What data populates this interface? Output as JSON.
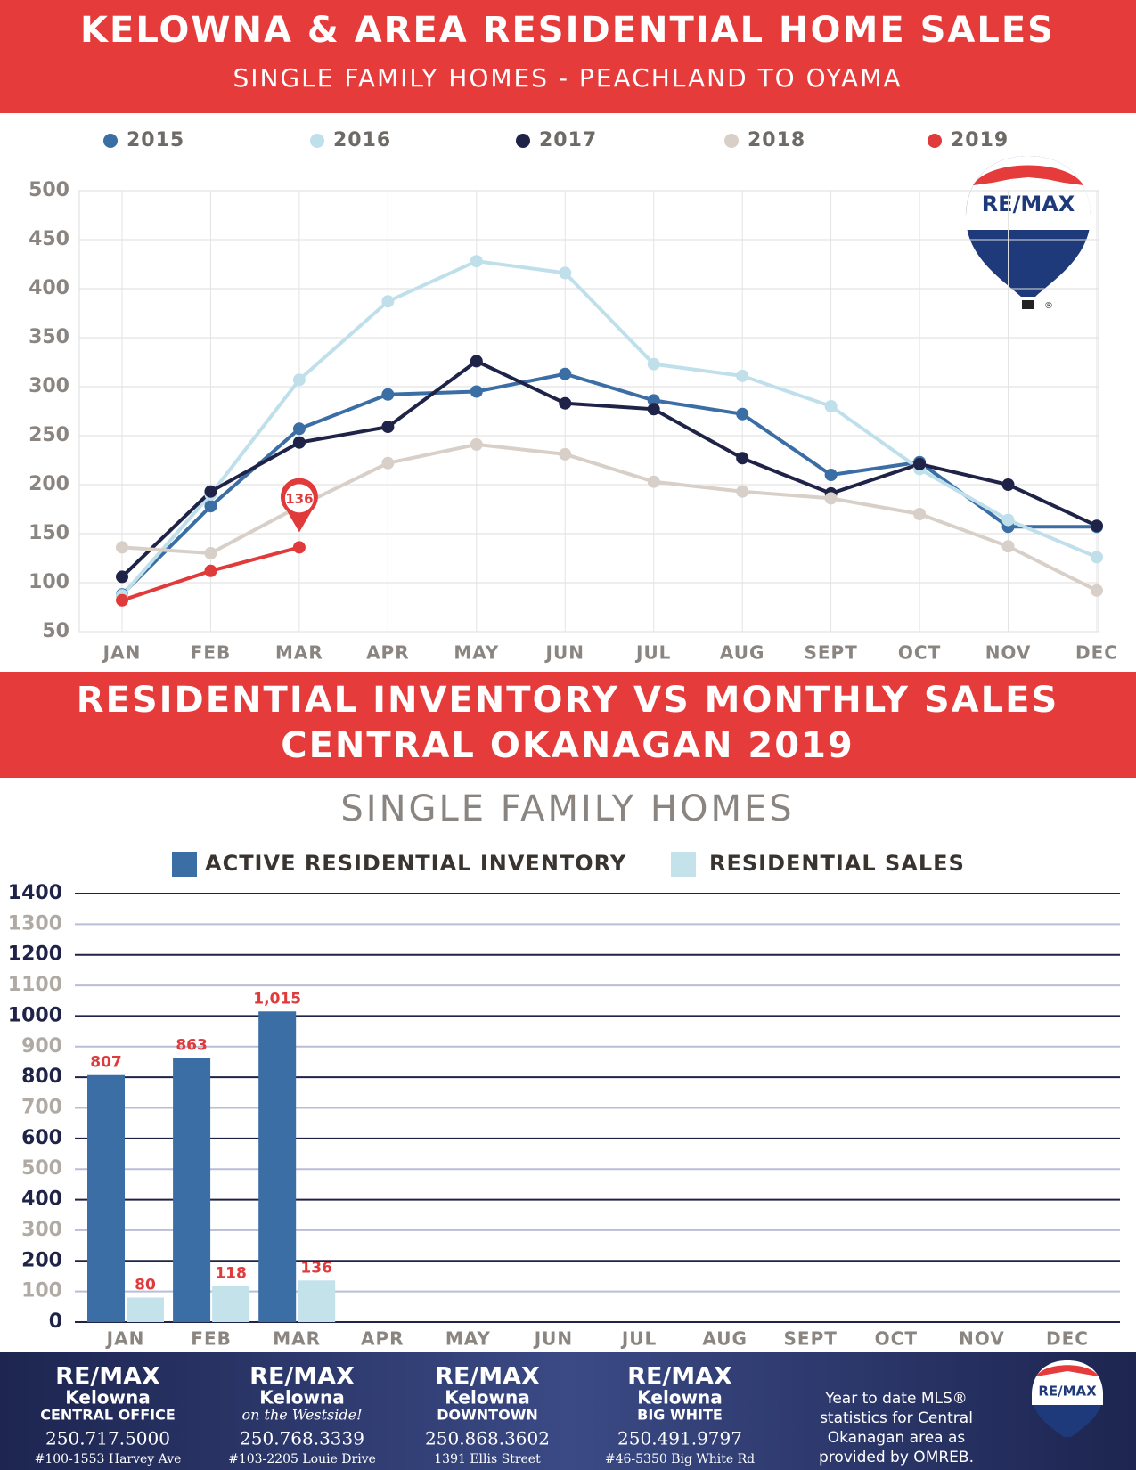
{
  "chart_data": [
    {
      "type": "line",
      "title": "KELOWNA & AREA RESIDENTIAL HOME SALES",
      "subtitle": "SINGLE FAMILY HOMES - PEACHLAND TO OYAMA",
      "categories": [
        "JAN",
        "FEB",
        "MAR",
        "APR",
        "MAY",
        "JUN",
        "JUL",
        "AUG",
        "SEPT",
        "OCT",
        "NOV",
        "DEC"
      ],
      "series": [
        {
          "name": "2015",
          "color": "#3a6ea5",
          "values": [
            88,
            178,
            257,
            292,
            295,
            313,
            286,
            272,
            210,
            223,
            157,
            157
          ]
        },
        {
          "name": "2016",
          "color": "#bfe0ea",
          "values": [
            87,
            190,
            307,
            387,
            428,
            416,
            323,
            311,
            280,
            216,
            164,
            126
          ]
        },
        {
          "name": "2017",
          "color": "#1f2347",
          "values": [
            106,
            193,
            243,
            259,
            326,
            283,
            277,
            227,
            191,
            221,
            200,
            158
          ]
        },
        {
          "name": "2018",
          "color": "#d8d0c8",
          "values": [
            136,
            130,
            178,
            222,
            241,
            231,
            203,
            193,
            186,
            170,
            137,
            92
          ]
        },
        {
          "name": "2019",
          "color": "#e03a3a",
          "values": [
            82,
            112,
            136,
            null,
            null,
            null,
            null,
            null,
            null,
            null,
            null,
            null
          ],
          "value_labels": [
            null,
            null,
            "136",
            null,
            null,
            null,
            null,
            null,
            null,
            null,
            null,
            null
          ]
        }
      ],
      "ylim": [
        50,
        500
      ],
      "yticks": [
        50,
        100,
        150,
        200,
        250,
        300,
        350,
        400,
        450,
        500
      ],
      "grid": true
    },
    {
      "type": "bar",
      "title": "RESIDENTIAL INVENTORY VS MONTHLY SALES",
      "subtitle": "CENTRAL OKANAGAN 2019",
      "heading": "SINGLE FAMILY HOMES",
      "categories": [
        "JAN",
        "FEB",
        "MAR",
        "APR",
        "MAY",
        "JUN",
        "JUL",
        "AUG",
        "SEPT",
        "OCT",
        "NOV",
        "DEC"
      ],
      "series": [
        {
          "name": "ACTIVE RESIDENTIAL INVENTORY",
          "color": "#3a6ea5",
          "values": [
            807,
            863,
            1015,
            null,
            null,
            null,
            null,
            null,
            null,
            null,
            null,
            null
          ],
          "value_labels": [
            "807",
            "863",
            "1,015",
            null,
            null,
            null,
            null,
            null,
            null,
            null,
            null,
            null
          ]
        },
        {
          "name": "RESIDENTIAL SALES",
          "color": "#c3e2ea",
          "values": [
            80,
            118,
            136,
            null,
            null,
            null,
            null,
            null,
            null,
            null,
            null,
            null
          ]
        }
      ],
      "ylim": [
        0,
        1400
      ],
      "yticks": [
        0,
        100,
        200,
        300,
        400,
        500,
        600,
        700,
        800,
        900,
        1000,
        1100,
        1200,
        1300,
        1400
      ],
      "grid": true
    }
  ],
  "logo": {
    "text": "RE/MAX",
    "mark": "®"
  },
  "footer": {
    "offices": [
      {
        "brand": "RE/MAX",
        "name": "Kelowna",
        "sub": "CENTRAL OFFICE",
        "phone": "250.717.5000",
        "address": "#100-1553 Harvey Ave"
      },
      {
        "brand": "RE/MAX",
        "name": "Kelowna",
        "sub": "on the Westside!",
        "phone": "250.768.3339",
        "address": "#103-2205 Louie Drive"
      },
      {
        "brand": "RE/MAX",
        "name": "Kelowna",
        "sub": "DOWNTOWN",
        "phone": "250.868.3602",
        "address": "1391 Ellis Street"
      },
      {
        "brand": "RE/MAX",
        "name": "Kelowna",
        "sub": "BIG WHITE",
        "phone": "250.491.9797",
        "address": "#46-5350 Big White Rd"
      }
    ],
    "note": [
      "Year to date MLS®",
      "statistics for Central",
      "Okanagan area as",
      "provided by OMREB."
    ]
  }
}
